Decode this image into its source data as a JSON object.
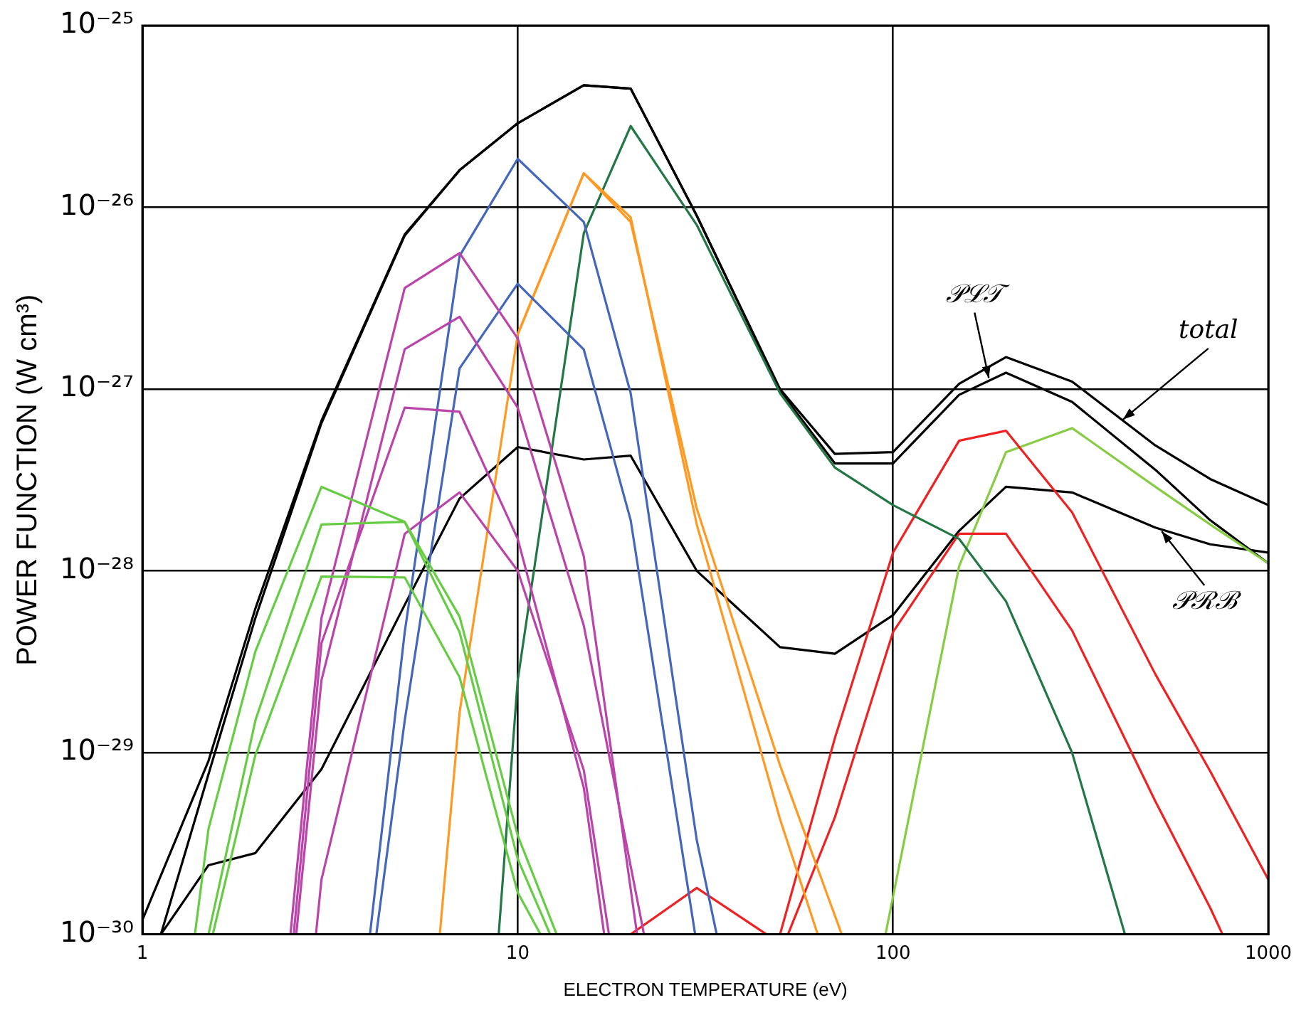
{
  "chart_data": {
    "type": "line",
    "xlabel": "ELECTRON TEMPERATURE (eV)",
    "ylabel": "POWER FUNCTION (W cm³)",
    "log": "xy",
    "grid": true,
    "xlim": [
      1,
      1000
    ],
    "ylim": [
      1e-30,
      1e-25
    ],
    "xticks": [
      1,
      10,
      100,
      1000
    ],
    "yticks": [
      {
        "value": 1e-30,
        "label": "10⁻³⁰"
      },
      {
        "value": 1e-29,
        "label": "10⁻²⁹"
      },
      {
        "value": 1e-28,
        "label": "10⁻²⁸"
      },
      {
        "value": 1e-27,
        "label": "10⁻²⁷"
      },
      {
        "value": 1e-26,
        "label": "10⁻²⁶"
      },
      {
        "value": 1e-25,
        "label": "10⁻²⁵"
      }
    ],
    "series": [
      {
        "color": "#66cc44",
        "x": [
          1.38,
          1.5,
          2,
          3,
          5,
          7,
          10,
          12.7
        ],
        "values": [
          1e-30,
          3.8e-30,
          3.6e-29,
          2.9e-28,
          1.86e-28,
          5.6e-29,
          3.5e-30,
          1e-30
        ]
      },
      {
        "color": "#66cc44",
        "x": [
          1.5,
          2,
          3,
          5,
          7,
          10,
          12.2
        ],
        "values": [
          1e-30,
          1.5e-29,
          1.8e-28,
          1.86e-28,
          4.6e-29,
          2.6e-30,
          1e-30
        ]
      },
      {
        "color": "#66cc44",
        "x": [
          1.54,
          2,
          3,
          5,
          7,
          10,
          11.5
        ],
        "values": [
          1e-30,
          9.7e-30,
          9.3e-29,
          9.2e-29,
          2.6e-29,
          1.7e-30,
          1e-30
        ]
      },
      {
        "color": "#bb44aa",
        "x": [
          2.48,
          3,
          5,
          7,
          10,
          15,
          20.8
        ],
        "values": [
          1e-30,
          5.5e-29,
          3.6e-27,
          5.6e-27,
          1.9e-27,
          1.2e-28,
          1e-30
        ]
      },
      {
        "color": "#bb44aa",
        "x": [
          2.57,
          3,
          5,
          7,
          10,
          15,
          21.7
        ],
        "values": [
          1e-30,
          2.5e-29,
          1.66e-27,
          2.5e-27,
          7.9e-28,
          5e-29,
          1e-30
        ]
      },
      {
        "color": "#bb44aa",
        "x": [
          2.53,
          3,
          5,
          7,
          10,
          15,
          17
        ],
        "values": [
          1e-30,
          4e-29,
          7.9e-28,
          7.5e-28,
          1.5e-28,
          6.4e-30,
          1e-30
        ]
      },
      {
        "color": "#bb44aa",
        "x": [
          2.9,
          3,
          5,
          7,
          10,
          15,
          17.5
        ],
        "values": [
          1e-30,
          2e-30,
          1.6e-28,
          2.7e-28,
          1e-28,
          8e-30,
          1e-30
        ]
      },
      {
        "color": "#4466bb",
        "x": [
          4.04,
          5,
          7,
          10,
          15,
          20,
          30,
          33.9
        ],
        "values": [
          1e-30,
          4.6e-29,
          5.4e-27,
          1.85e-26,
          8.3e-27,
          9.5e-28,
          3.3e-30,
          1e-30
        ]
      },
      {
        "color": "#4466bb",
        "x": [
          4.2,
          5,
          7,
          10,
          15,
          20,
          29.7
        ],
        "values": [
          1e-30,
          1.5e-29,
          1.3e-27,
          3.8e-27,
          1.65e-27,
          1.9e-28,
          1e-30
        ]
      },
      {
        "color": "#ff9922",
        "x": [
          6.2,
          7,
          10,
          15,
          20,
          30,
          50,
          63
        ],
        "values": [
          1e-30,
          1.66e-29,
          2e-27,
          1.54e-26,
          8.8e-27,
          1.8e-28,
          4.3e-30,
          1e-30
        ]
      },
      {
        "color": "#ff9922",
        "x": [
          10,
          15,
          20,
          30,
          50,
          73
        ],
        "values": [
          2e-27,
          1.54e-26,
          8.3e-27,
          2.2e-28,
          8.5e-30,
          1e-30
        ]
      },
      {
        "color": "#227744",
        "x": [
          8.9,
          10,
          15,
          20,
          30,
          50,
          70,
          100,
          150,
          200,
          300,
          415
        ],
        "values": [
          1e-30,
          2.5e-29,
          7.2e-27,
          2.8e-26,
          8e-27,
          9.5e-28,
          3.7e-28,
          2.3e-28,
          1.5e-28,
          6.8e-29,
          1e-29,
          1e-30
        ]
      },
      {
        "color": "#ee2222",
        "x": [
          20,
          30,
          46
        ],
        "values": [
          1e-30,
          1.8e-30,
          1e-30
        ]
      },
      {
        "color": "#ee2222",
        "x": [
          50,
          70,
          100,
          150,
          200,
          300,
          500,
          700,
          1000
        ],
        "values": [
          1e-30,
          1.2e-29,
          1.26e-28,
          5.2e-28,
          5.9e-28,
          2.1e-28,
          2.7e-29,
          7.9e-30,
          2e-30
        ]
      },
      {
        "color": "#ee2222",
        "x": [
          52.5,
          70,
          100,
          150,
          200,
          300,
          500,
          700,
          755
        ],
        "values": [
          1e-30,
          4.4e-30,
          4.6e-29,
          1.6e-28,
          1.6e-28,
          4.7e-29,
          5.4e-30,
          1.4e-30,
          1e-30
        ]
      },
      {
        "color": "#88cc44",
        "x": [
          95.5,
          150,
          200,
          300,
          500,
          700,
          1000
        ],
        "values": [
          1e-30,
          1.06e-28,
          4.5e-28,
          6.1e-28,
          2.9e-28,
          1.8e-28,
          1.1e-28
        ]
      },
      {
        "color": "#000000",
        "x": [
          1,
          1.5,
          2,
          3,
          5,
          7,
          10,
          15,
          20,
          30,
          50,
          70,
          100,
          150,
          200,
          300,
          500,
          700,
          1000
        ],
        "values": [
          1.2e-30,
          9e-30,
          6.2e-29,
          6.7e-28,
          7.1e-27,
          1.6e-26,
          2.9e-26,
          4.7e-26,
          4.5e-26,
          9e-27,
          1e-27,
          4.4e-28,
          4.5e-28,
          1.07e-27,
          1.5e-27,
          1.1e-27,
          4.9e-28,
          3.2e-28,
          2.3e-28
        ]
      },
      {
        "color": "#000000",
        "x": [
          1.12,
          1.5,
          2,
          3,
          5,
          7,
          10,
          15,
          20,
          30,
          50,
          70,
          100,
          150,
          200,
          300,
          500,
          700,
          1000
        ],
        "values": [
          1e-30,
          7.6e-30,
          5.5e-29,
          6.5e-28,
          7e-27,
          1.6e-26,
          2.9e-26,
          4.7e-26,
          4.5e-26,
          9e-27,
          9.8e-28,
          3.9e-28,
          3.9e-28,
          9.3e-28,
          1.23e-27,
          8.5e-28,
          3.6e-28,
          1.9e-28,
          1.1e-28
        ]
      },
      {
        "color": "#000000",
        "x": [
          1.12,
          1.5,
          2,
          3,
          5,
          7,
          10,
          15,
          20,
          30,
          50,
          70,
          100,
          150,
          200,
          300,
          500,
          700,
          1000
        ],
        "values": [
          1e-30,
          2.4e-30,
          2.8e-30,
          8.1e-30,
          6.5e-29,
          2.5e-28,
          4.8e-28,
          4.1e-28,
          4.3e-28,
          1e-28,
          3.8e-29,
          3.5e-29,
          5.7e-29,
          1.66e-28,
          2.9e-28,
          2.7e-28,
          1.73e-28,
          1.4e-28,
          1.26e-28
        ]
      }
    ],
    "annotations": [
      {
        "text": "𝒫ℒ𝒯",
        "x": 180,
        "y": 1.15e-27
      },
      {
        "text": "total",
        "x": 410,
        "y": 6.8e-28
      },
      {
        "text": "𝒫ℛℬ",
        "x": 520,
        "y": 1.65e-28
      }
    ]
  }
}
